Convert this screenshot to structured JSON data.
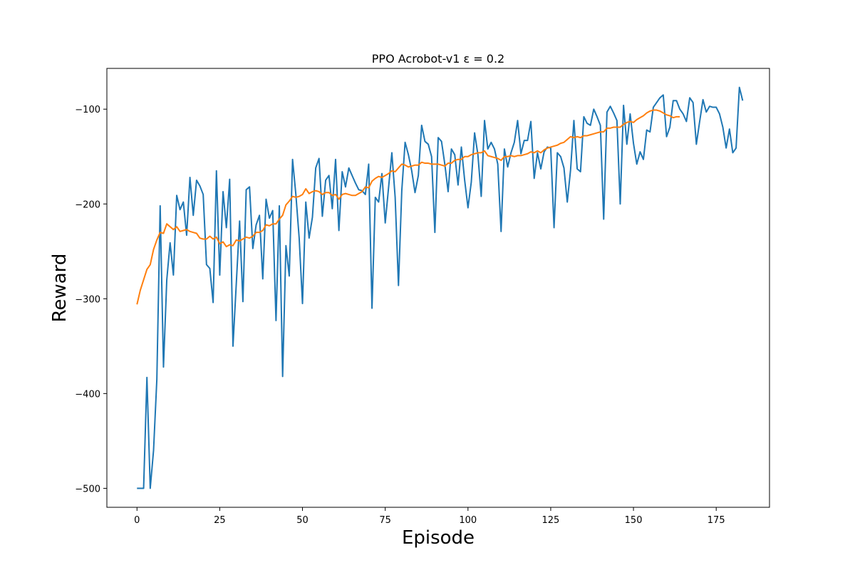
{
  "chart_data": {
    "type": "line",
    "title": "PPO Acrobot-v1 ε = 0.2",
    "xlabel": "Episode",
    "ylabel": "Reward",
    "xlim": [
      -9.1,
      191.1
    ],
    "ylim": [
      -520,
      -57
    ],
    "xticks": [
      0,
      25,
      50,
      75,
      100,
      125,
      150,
      175
    ],
    "yticks": [
      -500,
      -400,
      -300,
      -200,
      -100
    ],
    "grid": false,
    "series": [
      {
        "color": "#1f77b4",
        "x_start": 0,
        "values": [
          -500,
          -500,
          -500,
          -383,
          -500,
          -460,
          -385,
          -202,
          -372,
          -280,
          -241,
          -275,
          -191,
          -206,
          -198,
          -233,
          -172,
          -212,
          -175,
          -181,
          -190,
          -264,
          -268,
          -304,
          -165,
          -275,
          -187,
          -225,
          -174,
          -350,
          -284,
          -218,
          -303,
          -185,
          -182,
          -247,
          -222,
          -212,
          -279,
          -195,
          -215,
          -207,
          -323,
          -202,
          -382,
          -244,
          -276,
          -153,
          -190,
          -236,
          -305,
          -198,
          -236,
          -214,
          -162,
          -152,
          -213,
          -175,
          -170,
          -205,
          -153,
          -228,
          -166,
          -182,
          -162,
          -170,
          -178,
          -185,
          -186,
          -190,
          -158,
          -310,
          -193,
          -198,
          -168,
          -220,
          -183,
          -146,
          -193,
          -286,
          -186,
          -135,
          -148,
          -165,
          -188,
          -170,
          -117,
          -134,
          -137,
          -150,
          -230,
          -130,
          -134,
          -158,
          -187,
          -142,
          -148,
          -180,
          -140,
          -175,
          -204,
          -177,
          -125,
          -148,
          -192,
          -112,
          -142,
          -135,
          -142,
          -158,
          -229,
          -142,
          -161,
          -146,
          -135,
          -112,
          -147,
          -133,
          -133,
          -113,
          -173,
          -146,
          -163,
          -145,
          -140,
          -141,
          -225,
          -146,
          -150,
          -162,
          -198,
          -164,
          -112,
          -163,
          -166,
          -108,
          -115,
          -117,
          -100,
          -108,
          -117,
          -216,
          -103,
          -97,
          -104,
          -112,
          -200,
          -96,
          -137,
          -105,
          -136,
          -158,
          -145,
          -153,
          -122,
          -124,
          -98,
          -93,
          -88,
          -85,
          -129,
          -119,
          -91,
          -91,
          -100,
          -105,
          -113,
          -88,
          -93,
          -137,
          -113,
          -90,
          -103,
          -97,
          -98,
          -98,
          -105,
          -119,
          -141,
          -121,
          -146,
          -141,
          -77,
          -91
        ]
      },
      {
        "color": "#ff7f0e",
        "x_start": 0,
        "values": [
          -306,
          -291,
          -280,
          -269,
          -264,
          -248,
          -238,
          -230,
          -231,
          -221,
          -224,
          -227,
          -224,
          -229,
          -228,
          -227,
          -229,
          -230,
          -231,
          -236,
          -237,
          -237,
          -234,
          -237,
          -235,
          -242,
          -240,
          -245,
          -243,
          -244,
          -238,
          -239,
          -237,
          -235,
          -236,
          -234,
          -230,
          -230,
          -228,
          -222,
          -223,
          -221,
          -221,
          -216,
          -212,
          -201,
          -197,
          -192,
          -193,
          -192,
          -190,
          -184,
          -189,
          -187,
          -186,
          -187,
          -190,
          -188,
          -188,
          -191,
          -190,
          -195,
          -190,
          -189,
          -190,
          -191,
          -191,
          -189,
          -187,
          -182,
          -183,
          -176,
          -173,
          -171,
          -172,
          -170,
          -168,
          -165,
          -166,
          -162,
          -158,
          -159,
          -161,
          -160,
          -159,
          -159,
          -156,
          -157,
          -157,
          -158,
          -158,
          -158,
          -159,
          -160,
          -157,
          -157,
          -154,
          -153,
          -153,
          -150,
          -150,
          -148,
          -147,
          -146,
          -146,
          -144,
          -149,
          -150,
          -151,
          -152,
          -154,
          -150,
          -150,
          -149,
          -150,
          -149,
          -149,
          -148,
          -147,
          -145,
          -146,
          -144,
          -146,
          -143,
          -141,
          -140,
          -139,
          -138,
          -136,
          -135,
          -132,
          -129,
          -130,
          -129,
          -130,
          -128,
          -128,
          -127,
          -126,
          -125,
          -124,
          -124,
          -120,
          -120,
          -119,
          -119,
          -119,
          -116,
          -114,
          -113,
          -114,
          -111,
          -109,
          -107,
          -104,
          -102,
          -101,
          -101,
          -102,
          -104,
          -106,
          -107,
          -109,
          -108,
          -108
        ]
      }
    ]
  }
}
